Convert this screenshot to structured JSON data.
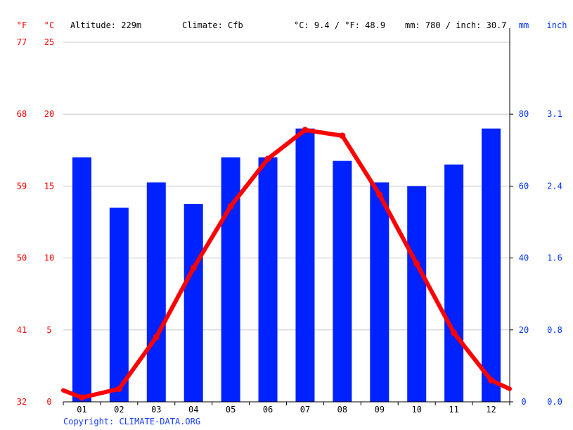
{
  "chart_data": {
    "type": "bar+line",
    "header": {
      "unit_f": "°F",
      "unit_c": "°C",
      "altitude": "Altitude: 229m",
      "climate": "Climate: Cfb",
      "temp_summary": "°C: 9.4 / °F: 48.9",
      "precip_summary": "mm: 780 / inch: 30.7",
      "unit_mm": "mm",
      "unit_inch": "inch"
    },
    "months": [
      "01",
      "02",
      "03",
      "04",
      "05",
      "06",
      "07",
      "08",
      "09",
      "10",
      "11",
      "12"
    ],
    "precipitation_mm": [
      68,
      54,
      61,
      55,
      68,
      68,
      76,
      67,
      61,
      60,
      66,
      76
    ],
    "temperature_c": [
      0.3,
      0.9,
      4.5,
      9.3,
      13.6,
      16.9,
      18.9,
      18.5,
      14.4,
      9.6,
      4.8,
      1.5
    ],
    "temperature_line_edges_c": [
      0.8,
      0.9
    ],
    "left_axis_c_ticks": [
      "0",
      "5",
      "10",
      "15",
      "20",
      "25"
    ],
    "left_axis_f_ticks": [
      "32",
      "41",
      "50",
      "59",
      "68",
      "77"
    ],
    "right_axis_mm_ticks": [
      "0",
      "20",
      "40",
      "60",
      "80"
    ],
    "right_axis_inch_ticks": [
      "0.0",
      "0.8",
      "1.6",
      "2.4",
      "3.1"
    ],
    "temperature_range_c": [
      0,
      25
    ],
    "precipitation_range_mm": [
      0,
      100
    ],
    "copyright": "Copyright: CLIMATE-DATA.ORG",
    "colors": {
      "temperature": "#ff0000",
      "precipitation": "#0022ff",
      "precip_labels": "#0033ff",
      "grid": "#c8c8c8",
      "axis": "#000000",
      "copyright": "#1a3cff"
    }
  }
}
